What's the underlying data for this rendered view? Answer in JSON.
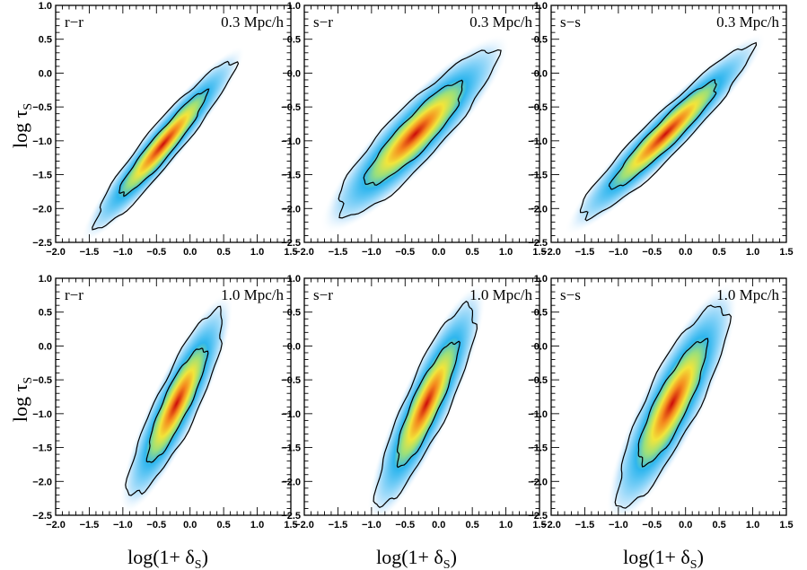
{
  "chart_data": {
    "type": "heatmap",
    "xlabel": "log(1+ δ_S)",
    "ylabel": "log τ_S",
    "xlim": [
      -2.0,
      1.5
    ],
    "ylim": [
      -2.5,
      1.0
    ],
    "x_ticks": [
      "−2.0",
      "−1.5",
      "−1.0",
      "−0.5",
      "0.0",
      "0.5",
      "1.0",
      "1.5"
    ],
    "y_ticks": [
      "−2.5",
      "−2.0",
      "−1.5",
      "−1.0",
      "−0.5",
      "0.0",
      "0.5",
      "1.0"
    ],
    "colormap": [
      "#ffffff",
      "#cfeafc",
      "#7fd0f7",
      "#2fb6ee",
      "#9be07a",
      "#f2e53a",
      "#f58a1e",
      "#cc0a0a"
    ],
    "panels": [
      {
        "label": "r−r",
        "scale": "0.3 Mpc/h",
        "center": [
          -0.4,
          -1.05
        ],
        "slope": 1.2,
        "sig_u": 0.52,
        "sig_v": 0.085,
        "inner_k": 1.9,
        "outer_k": 3.05
      },
      {
        "label": "s−r",
        "scale": "0.3 Mpc/h",
        "center": [
          -0.35,
          -0.9
        ],
        "slope": 1.05,
        "sig_u": 0.55,
        "sig_v": 0.13,
        "inner_k": 1.85,
        "outer_k": 3.0
      },
      {
        "label": "s−s",
        "scale": "0.3 Mpc/h",
        "center": [
          -0.3,
          -0.9
        ],
        "slope": 1.0,
        "sig_u": 0.58,
        "sig_v": 0.095,
        "inner_k": 1.9,
        "outer_k": 3.05
      },
      {
        "label": "r−r",
        "scale": "1.0 Mpc/h",
        "center": [
          -0.2,
          -0.85
        ],
        "slope": 2.1,
        "sig_u": 0.5,
        "sig_v": 0.105,
        "inner_k": 1.85,
        "outer_k": 3.0
      },
      {
        "label": "s−r",
        "scale": "1.0 Mpc/h",
        "center": [
          -0.18,
          -0.85
        ],
        "slope": 2.2,
        "sig_u": 0.54,
        "sig_v": 0.11,
        "inner_k": 1.85,
        "outer_k": 3.0
      },
      {
        "label": "s−s",
        "scale": "1.0 Mpc/h",
        "center": [
          -0.2,
          -0.85
        ],
        "slope": 2.0,
        "sig_u": 0.55,
        "sig_v": 0.13,
        "inner_k": 1.85,
        "outer_k": 3.0
      }
    ]
  }
}
